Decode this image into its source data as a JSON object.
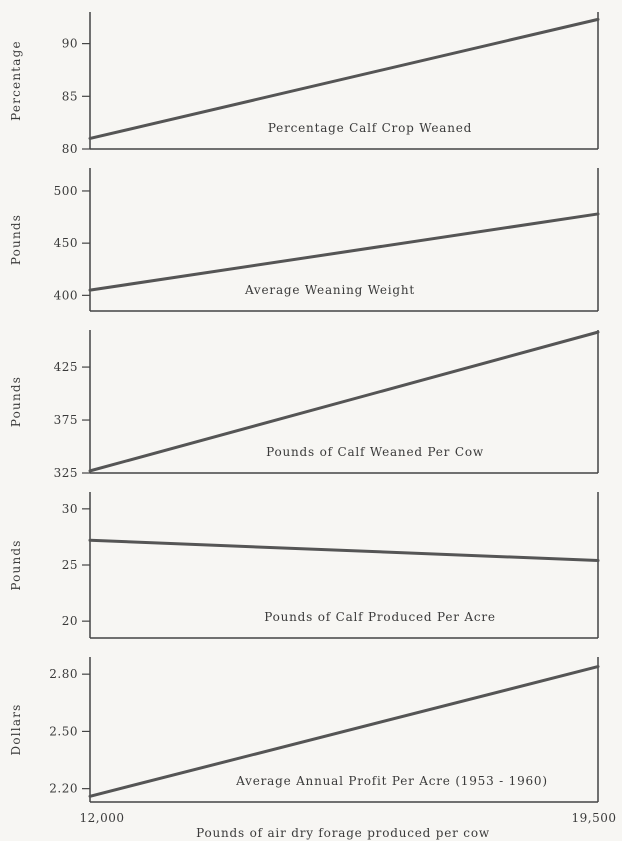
{
  "chart_data": [
    {
      "type": "line",
      "caption": "Percentage Calf Crop Weaned",
      "ylabel": "Percentage",
      "xlim": [
        12000,
        19500
      ],
      "ylim": [
        80,
        93
      ],
      "yticks": [
        80,
        85,
        90
      ],
      "ytick_labels": [
        "80",
        "85",
        "90"
      ],
      "x": [
        12000,
        19500
      ],
      "y": [
        81,
        92.3
      ]
    },
    {
      "type": "line",
      "caption": "Average Weaning Weight",
      "ylabel": "Pounds",
      "xlim": [
        12000,
        19500
      ],
      "ylim": [
        385,
        522
      ],
      "yticks": [
        400,
        450,
        500
      ],
      "ytick_labels": [
        "400",
        "450",
        "500"
      ],
      "x": [
        12000,
        19500
      ],
      "y": [
        405,
        478
      ]
    },
    {
      "type": "line",
      "caption": "Pounds of Calf Weaned Per Cow",
      "ylabel": "Pounds",
      "xlim": [
        12000,
        19500
      ],
      "ylim": [
        325,
        460
      ],
      "yticks": [
        325,
        375,
        425
      ],
      "ytick_labels": [
        "325",
        "375",
        "425"
      ],
      "x": [
        12000,
        19500
      ],
      "y": [
        327,
        458
      ]
    },
    {
      "type": "line",
      "caption": "Pounds of Calf Produced Per Acre",
      "ylabel": "Pounds",
      "xlim": [
        12000,
        19500
      ],
      "ylim": [
        18.5,
        31.5
      ],
      "yticks": [
        20,
        25,
        30
      ],
      "ytick_labels": [
        "20",
        "25",
        "30"
      ],
      "x": [
        12000,
        19500
      ],
      "y": [
        27.2,
        25.4
      ]
    },
    {
      "type": "line",
      "caption": "Average Annual Profit Per Acre (1953 - 1960)",
      "ylabel": "Dollars",
      "xlim": [
        12000,
        19500
      ],
      "ylim": [
        2.13,
        2.89
      ],
      "yticks": [
        2.2,
        2.5,
        2.8
      ],
      "ytick_labels": [
        "2.20",
        "2.50",
        "2.80"
      ],
      "x": [
        12000,
        19500
      ],
      "y": [
        2.16,
        2.84
      ]
    }
  ],
  "x_axis": {
    "xlabel": "Pounds of air dry forage produced per cow",
    "tick_labels": [
      "12,000",
      "19,500"
    ]
  }
}
